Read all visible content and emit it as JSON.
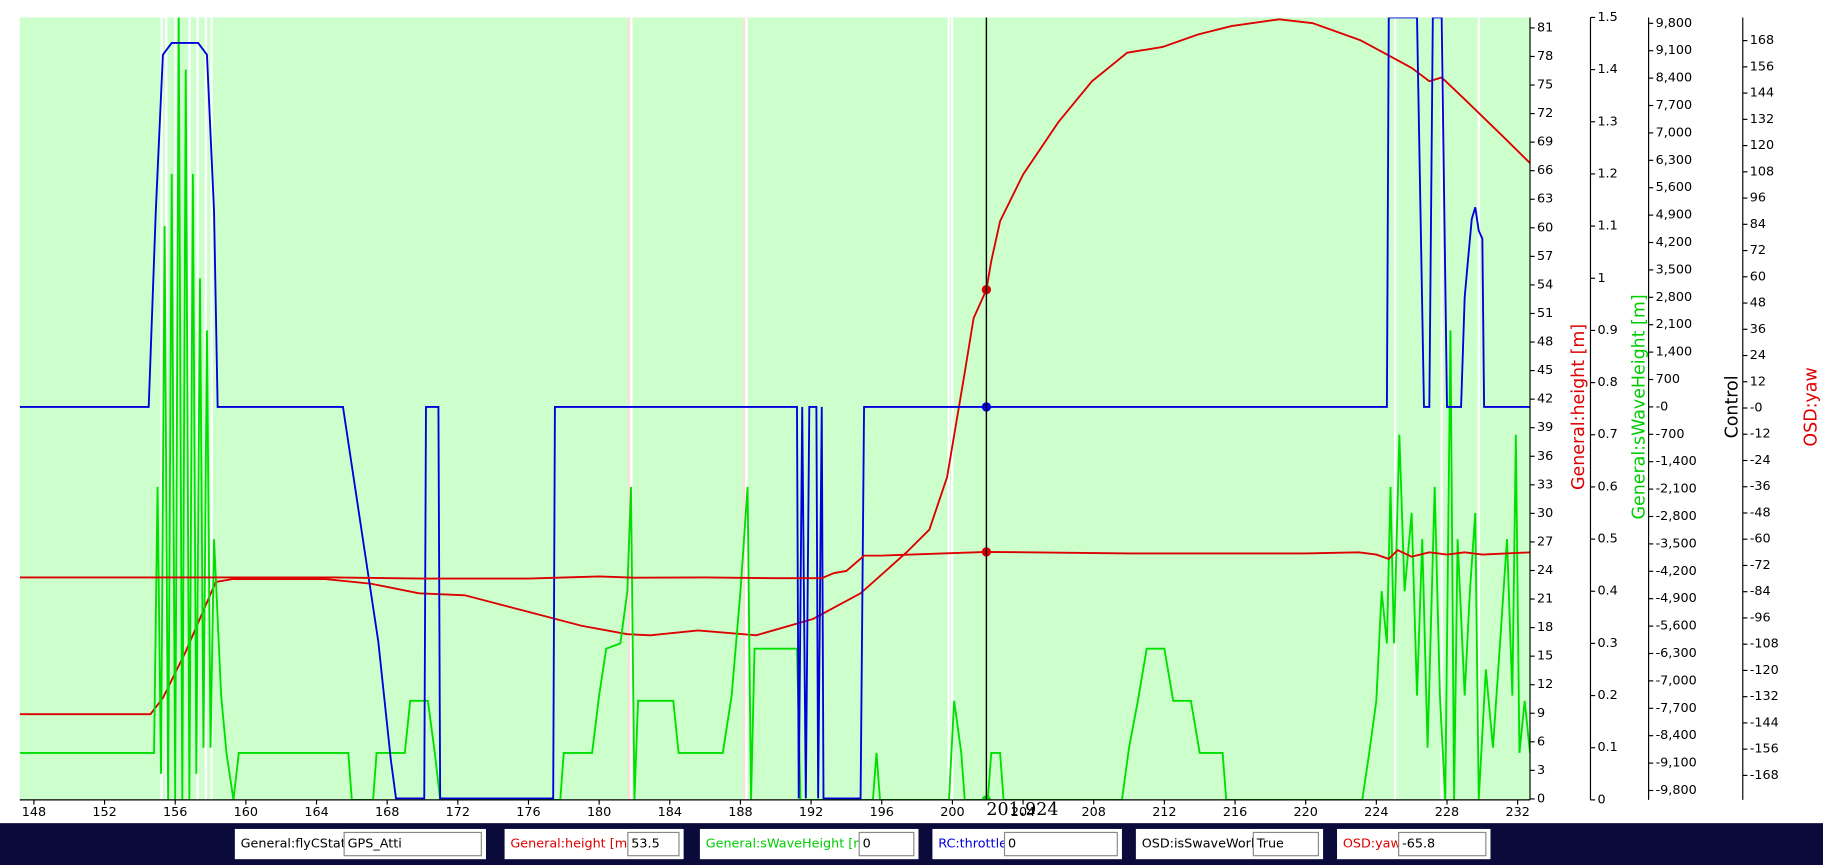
{
  "chart_data": {
    "type": "line",
    "xlim": [
      147.2,
      232.7
    ],
    "xticks": [
      148,
      152,
      156,
      160,
      164,
      168,
      172,
      176,
      180,
      184,
      188,
      192,
      196,
      200,
      204,
      208,
      212,
      216,
      220,
      224,
      228,
      232
    ],
    "ylabel": "General:height [m]",
    "ylabel_color": "#dd0000",
    "ylim": [
      -0.1,
      82.1
    ],
    "yticks": [
      0,
      3,
      6,
      9,
      12,
      15,
      18,
      21,
      24,
      27,
      30,
      33,
      36,
      39,
      42,
      45,
      48,
      51,
      54,
      57,
      60,
      63,
      66,
      69,
      72,
      75,
      78,
      81
    ],
    "y2label": "General:sWaveHeight [m]",
    "y2label_color": "#00cc00",
    "y2lim": [
      0,
      1.5
    ],
    "y2ticks": [
      0,
      0.1,
      0.2,
      0.3,
      0.4,
      0.5,
      0.6,
      0.7,
      0.8,
      0.9,
      1,
      1.1,
      1.2,
      1.3,
      1.4,
      1.5
    ],
    "y3label": "Control",
    "y3label_color": "#000000",
    "y3lim": [
      -10040,
      9950
    ],
    "y3ticks": [
      {
        "value": 9800,
        "label": "9,800"
      },
      {
        "value": 9100,
        "label": "9,100"
      },
      {
        "value": 8400,
        "label": "8,400"
      },
      {
        "value": 7700,
        "label": "7,700"
      },
      {
        "value": 7000,
        "label": "7,000"
      },
      {
        "value": 6300,
        "label": "6,300"
      },
      {
        "value": 5600,
        "label": "5,600"
      },
      {
        "value": 4900,
        "label": "4,900"
      },
      {
        "value": 4200,
        "label": "4,200"
      },
      {
        "value": 3500,
        "label": "3,500"
      },
      {
        "value": 2800,
        "label": "2,800"
      },
      {
        "value": 2100,
        "label": "2,100"
      },
      {
        "value": 1400,
        "label": "1,400"
      },
      700,
      {
        "value": 0,
        "label": "-0"
      },
      -700,
      {
        "value": -1400,
        "label": "-1,400"
      },
      {
        "value": -2100,
        "label": "-2,100"
      },
      {
        "value": -2800,
        "label": "-2,800"
      },
      {
        "value": -3500,
        "label": "-3,500"
      },
      {
        "value": -4200,
        "label": "-4,200"
      },
      {
        "value": -4900,
        "label": "-4,900"
      },
      {
        "value": -5600,
        "label": "-5,600"
      },
      {
        "value": -6300,
        "label": "-6,300"
      },
      {
        "value": -7000,
        "label": "-7,000"
      },
      {
        "value": -7700,
        "label": "-7,700"
      },
      {
        "value": -8400,
        "label": "-8,400"
      },
      {
        "value": -9100,
        "label": "-9,100"
      },
      {
        "value": -9800,
        "label": "-9,800"
      }
    ],
    "y4label": "OSD:yaw",
    "y4label_color": "#dd0000",
    "y4lim": [
      -179.2,
      178.6
    ],
    "y4ticks": [
      168,
      156,
      144,
      132,
      120,
      108,
      96,
      84,
      72,
      60,
      48,
      36,
      24,
      12,
      {
        "value": 0,
        "label": "-0"
      },
      -12,
      -24,
      -36,
      -48,
      -60,
      -72,
      -84,
      -96,
      -108,
      -120,
      -132,
      -144,
      -156,
      -168
    ],
    "background": "#ccffcc",
    "cursor_x": 201.924,
    "series": [
      {
        "name": "General:height [m]",
        "color": "#dd0000",
        "axis": "y",
        "x": [
          147.2,
          154.6,
          155.3,
          156.6,
          158.3,
          159.25,
          164.5,
          167.1,
          169.8,
          172.4,
          175.7,
          179.0,
          181.6,
          182.9,
          185.6,
          188.9,
          192.1,
          194.8,
          197.4,
          198.7,
          199.7,
          200.7,
          201.2,
          201.924,
          202.2,
          202.7,
          204.0,
          206.0,
          207.9,
          209.9,
          211.9,
          213.9,
          215.8,
          218.5,
          220.4,
          223.1,
          225.0,
          226.0,
          227.0,
          227.7,
          229.0,
          231.0,
          232.7
        ],
        "values": [
          8.9,
          8.9,
          10.6,
          15.5,
          22.8,
          23.1,
          23.1,
          22.6,
          21.6,
          21.4,
          19.8,
          18.2,
          17.3,
          17.2,
          17.7,
          17.2,
          18.9,
          21.6,
          25.9,
          28.3,
          33.8,
          44.8,
          50.5,
          53.5,
          56.5,
          60.7,
          65.6,
          71.1,
          75.4,
          78.4,
          79.0,
          80.3,
          81.2,
          81.9,
          81.5,
          79.7,
          77.8,
          76.8,
          75.4,
          75.8,
          73.5,
          69.9,
          66.8
        ]
      },
      {
        "name": "General:sWaveHeight [m]",
        "color": "#00e000",
        "axis": "y2",
        "x": [
          147.2,
          154.8,
          155.0,
          155.2,
          155.4,
          155.6,
          155.8,
          156.0,
          156.2,
          156.4,
          156.6,
          156.8,
          157.0,
          157.2,
          157.4,
          157.6,
          157.8,
          158.0,
          158.2,
          158.6,
          158.9,
          159.3,
          159.6,
          165.8,
          166.0,
          167.2,
          167.4,
          169.0,
          169.3,
          170.3,
          170.7,
          171.0,
          177.8,
          178.0,
          179.6,
          180.0,
          180.4,
          181.2,
          181.6,
          181.8,
          182.0,
          182.2,
          184.2,
          184.5,
          187.0,
          187.5,
          188.0,
          188.4,
          188.6,
          188.8,
          191.2,
          191.4,
          195.5,
          195.7,
          195.9,
          199.8,
          200.1,
          200.5,
          200.7,
          201.6,
          202.0,
          202.2,
          202.7,
          202.9,
          209.6,
          210.0,
          210.5,
          211.0,
          212.0,
          212.5,
          213.5,
          214.0,
          215.3,
          215.5,
          223.2,
          223.6,
          224.0,
          224.3,
          224.6,
          224.8,
          225.0,
          225.3,
          225.6,
          226.0,
          226.3,
          226.6,
          226.9,
          227.3,
          227.6,
          227.9,
          228.2,
          228.4,
          228.6,
          229.0,
          229.3,
          229.6,
          229.8,
          230.2,
          230.6,
          231.0,
          231.4,
          231.7,
          231.9,
          232.1,
          232.4,
          232.7
        ],
        "values": [
          0.09,
          0.09,
          0.6,
          0.05,
          1.1,
          0.0,
          1.2,
          0.0,
          1.5,
          0.0,
          1.4,
          0.0,
          1.2,
          0.05,
          1.0,
          0.1,
          0.9,
          0.1,
          0.5,
          0.2,
          0.09,
          0.0,
          0.09,
          0.09,
          0.0,
          0.0,
          0.09,
          0.09,
          0.19,
          0.19,
          0.09,
          0.0,
          0.0,
          0.09,
          0.09,
          0.2,
          0.29,
          0.3,
          0.4,
          0.6,
          0.0,
          0.19,
          0.19,
          0.09,
          0.09,
          0.2,
          0.4,
          0.6,
          0.0,
          0.29,
          0.29,
          0.0,
          0.0,
          0.09,
          0.0,
          0.0,
          0.19,
          0.09,
          0.0,
          0.0,
          0.0,
          0.09,
          0.09,
          0.0,
          0.0,
          0.1,
          0.19,
          0.29,
          0.29,
          0.19,
          0.19,
          0.09,
          0.09,
          0.0,
          0.0,
          0.09,
          0.19,
          0.4,
          0.3,
          0.6,
          0.3,
          0.7,
          0.4,
          0.55,
          0.2,
          0.5,
          0.1,
          0.6,
          0.2,
          0.0,
          0.9,
          0.0,
          0.5,
          0.2,
          0.4,
          0.55,
          0.0,
          0.25,
          0.1,
          0.3,
          0.5,
          0.2,
          0.7,
          0.09,
          0.19,
          0.09
        ]
      },
      {
        "name": "RC:throttle",
        "color": "#0000dd",
        "axis": "y3",
        "x": [
          147.2,
          154.5,
          154.9,
          155.3,
          155.8,
          157.3,
          157.8,
          158.2,
          158.4,
          165.5,
          166.5,
          167.5,
          168.2,
          168.5,
          170.1,
          170.2,
          170.9,
          171.0,
          177.4,
          177.5,
          191.2,
          191.3,
          191.5,
          191.7,
          191.9,
          192.3,
          192.4,
          192.6,
          192.7,
          194.8,
          195.0,
          224.6,
          224.7,
          226.3,
          226.7,
          227.0,
          227.2,
          227.7,
          228.0,
          228.8,
          229.0,
          229.2,
          229.4,
          229.6,
          229.8,
          230.0,
          230.1,
          232.7
        ],
        "values": [
          0,
          0,
          5000,
          9000,
          9300,
          9300,
          9000,
          5000,
          0,
          0,
          -3000,
          -6000,
          -9000,
          -10000,
          -10000,
          0,
          0,
          -10000,
          -10000,
          0,
          0,
          -10000,
          0,
          -10000,
          0,
          0,
          -10000,
          0,
          -10000,
          -10000,
          0,
          0,
          9950,
          9950,
          0,
          0,
          9950,
          9950,
          0,
          0,
          2800,
          3800,
          4800,
          5100,
          4500,
          4300,
          0,
          0
        ]
      },
      {
        "name": "OSD:yaw",
        "color": "#dd0000",
        "axis": "y4",
        "x": [
          147.2,
          159.0,
          165.0,
          170.0,
          176.0,
          180.0,
          182.0,
          186.0,
          190.0,
          192.6,
          193.3,
          194.0,
          195.0,
          196.0,
          201.924,
          210.0,
          220.0,
          223.0,
          224.0,
          224.7,
          225.2,
          226.0,
          227.0,
          228.0,
          229.0,
          230.0,
          232.7
        ],
        "values": [
          -77.5,
          -77.5,
          -77.5,
          -78,
          -78,
          -77,
          -77.6,
          -77.5,
          -77.8,
          -77.8,
          -75.5,
          -74.5,
          -67.5,
          -67.5,
          -65.8,
          -66.5,
          -66.5,
          -66,
          -67,
          -69,
          -65,
          -68,
          -66,
          -67,
          -66,
          -67,
          -66
        ]
      }
    ],
    "readout": [
      {
        "label": "General:flyCState",
        "value": "GPS_Atti",
        "color": "#000000"
      },
      {
        "label": "General:height [m]",
        "value": 53.5,
        "color": "#dd0000",
        "axis": "y"
      },
      {
        "label": "General:sWaveHeight [m]",
        "value": 0,
        "color": "#00cc00",
        "axis": "y2"
      },
      {
        "label": "RC:throttle",
        "value": 0,
        "color": "#0000dd",
        "axis": "y3"
      },
      {
        "label": "OSD:isSwaveWork",
        "value": "True",
        "color": "#000000"
      },
      {
        "label": "OSD:yaw",
        "value": -65.8,
        "color": "#dd0000",
        "axis": "y4"
      }
    ]
  }
}
